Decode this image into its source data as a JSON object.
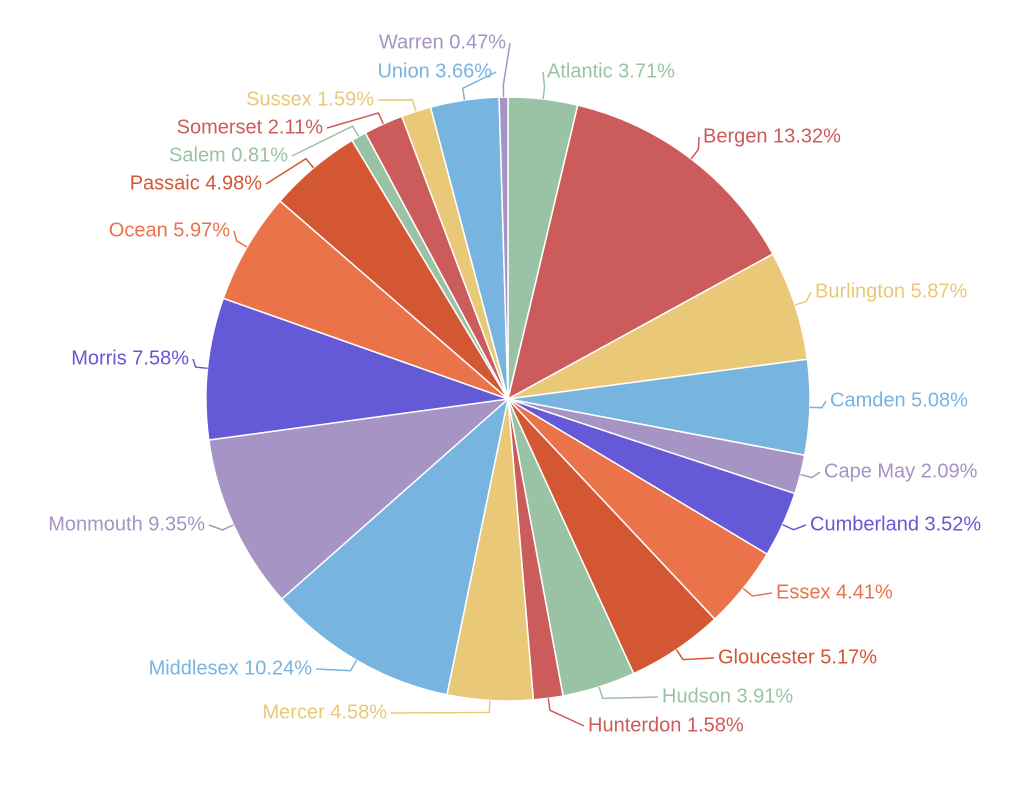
{
  "chart_data": {
    "type": "pie",
    "start_angle_deg": 0,
    "direction": "clockwise",
    "slices": [
      {
        "label": "Atlantic 3.71%",
        "name": "Atlantic",
        "value": 3.71,
        "color": "#9ac3a6"
      },
      {
        "label": "Bergen 13.32%",
        "name": "Bergen",
        "value": 13.32,
        "color": "#cc5b5b"
      },
      {
        "label": "Burlington 5.87%",
        "name": "Burlington",
        "value": 5.87,
        "color": "#e9c977"
      },
      {
        "label": "Camden 5.08%",
        "name": "Camden",
        "value": 5.08,
        "color": "#77b5e0"
      },
      {
        "label": "Cape May 2.09%",
        "name": "Cape May",
        "value": 2.09,
        "color": "#a594c4"
      },
      {
        "label": "Cumberland 3.52%",
        "name": "Cumberland",
        "value": 3.52,
        "color": "#6459d6"
      },
      {
        "label": "Essex 4.41%",
        "name": "Essex",
        "value": 4.41,
        "color": "#ea7349"
      },
      {
        "label": "Gloucester 5.17%",
        "name": "Gloucester",
        "value": 5.17,
        "color": "#d35733"
      },
      {
        "label": "Hudson 3.91%",
        "name": "Hudson",
        "value": 3.91,
        "color": "#9ac3a6"
      },
      {
        "label": "Hunterdon 1.58%",
        "name": "Hunterdon",
        "value": 1.58,
        "color": "#cc5b5b"
      },
      {
        "label": "Mercer 4.58%",
        "name": "Mercer",
        "value": 4.58,
        "color": "#e9c977"
      },
      {
        "label": "Middlesex 10.24%",
        "name": "Middlesex",
        "value": 10.24,
        "color": "#77b5e0"
      },
      {
        "label": "Monmouth 9.35%",
        "name": "Monmouth",
        "value": 9.35,
        "color": "#a594c4"
      },
      {
        "label": "Morris 7.58%",
        "name": "Morris",
        "value": 7.58,
        "color": "#6459d6"
      },
      {
        "label": "Ocean 5.97%",
        "name": "Ocean",
        "value": 5.97,
        "color": "#ea7349"
      },
      {
        "label": "Passaic 4.98%",
        "name": "Passaic",
        "value": 4.98,
        "color": "#d35733"
      },
      {
        "label": "Salem 0.81%",
        "name": "Salem",
        "value": 0.81,
        "color": "#9ac3a6"
      },
      {
        "label": "Somerset 2.11%",
        "name": "Somerset",
        "value": 2.11,
        "color": "#cc5b5b"
      },
      {
        "label": "Sussex 1.59%",
        "name": "Sussex",
        "value": 1.59,
        "color": "#e9c977"
      },
      {
        "label": "Union 3.66%",
        "name": "Union",
        "value": 3.66,
        "color": "#77b5e0"
      },
      {
        "label": "Warren 0.47%",
        "name": "Warren",
        "value": 0.47,
        "color": "#a594c4"
      }
    ]
  }
}
